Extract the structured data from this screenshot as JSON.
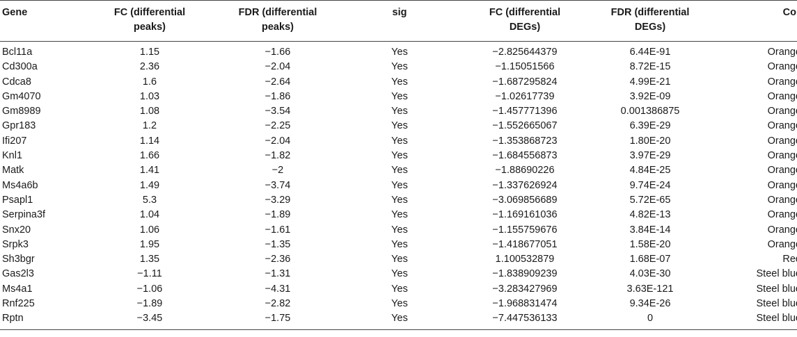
{
  "table": {
    "headers": {
      "gene": "Gene",
      "fc_peaks": [
        "FC (differential",
        "peaks)"
      ],
      "fdr_peaks": [
        "FDR (differential",
        "peaks)"
      ],
      "sig": "sig",
      "fc_degs": [
        "FC (differential",
        "DEGs)"
      ],
      "fdr_degs": [
        "FDR (differential",
        "DEGs)"
      ],
      "col": "Col"
    },
    "rows": [
      [
        "Bcl11a",
        "1.15",
        "−1.66",
        "Yes",
        "−2.825644379",
        "6.44E-91",
        "Orange"
      ],
      [
        "Cd300a",
        "2.36",
        "−2.04",
        "Yes",
        "−1.15051566",
        "8.72E-15",
        "Orange"
      ],
      [
        "Cdca8",
        "1.6",
        "−2.64",
        "Yes",
        "−1.687295824",
        "4.99E-21",
        "Orange"
      ],
      [
        "Gm4070",
        "1.03",
        "−1.86",
        "Yes",
        "−1.02617739",
        "3.92E-09",
        "Orange"
      ],
      [
        "Gm8989",
        "1.08",
        "−3.54",
        "Yes",
        "−1.457771396",
        "0.001386875",
        "Orange"
      ],
      [
        "Gpr183",
        "1.2",
        "−2.25",
        "Yes",
        "−1.552665067",
        "6.39E-29",
        "Orange"
      ],
      [
        "Ifi207",
        "1.14",
        "−2.04",
        "Yes",
        "−1.353868723",
        "1.80E-20",
        "Orange"
      ],
      [
        "Knl1",
        "1.66",
        "−1.82",
        "Yes",
        "−1.684556873",
        "3.97E-29",
        "Orange"
      ],
      [
        "Matk",
        "1.41",
        "−2",
        "Yes",
        "−1.88690226",
        "4.84E-25",
        "Orange"
      ],
      [
        "Ms4a6b",
        "1.49",
        "−3.74",
        "Yes",
        "−1.337626924",
        "9.74E-24",
        "Orange"
      ],
      [
        "Psapl1",
        "5.3",
        "−3.29",
        "Yes",
        "−3.069856689",
        "5.72E-65",
        "Orange"
      ],
      [
        "Serpina3f",
        "1.04",
        "−1.89",
        "Yes",
        "−1.169161036",
        "4.82E-13",
        "Orange"
      ],
      [
        "Snx20",
        "1.06",
        "−1.61",
        "Yes",
        "−1.155759676",
        "3.84E-14",
        "Orange"
      ],
      [
        "Srpk3",
        "1.95",
        "−1.35",
        "Yes",
        "−1.418677051",
        "1.58E-20",
        "Orange"
      ],
      [
        "Sh3bgr",
        "1.35",
        "−2.36",
        "Yes",
        "1.100532879",
        "1.68E-07",
        "Red"
      ],
      [
        "Gas2l3",
        "−1.11",
        "−1.31",
        "Yes",
        "−1.838909239",
        "4.03E-30",
        "Steel blue"
      ],
      [
        "Ms4a1",
        "−1.06",
        "−4.31",
        "Yes",
        "−3.283427969",
        "3.63E-121",
        "Steel blue"
      ],
      [
        "Rnf225",
        "−1.89",
        "−2.82",
        "Yes",
        "−1.968831474",
        "9.34E-26",
        "Steel blue"
      ],
      [
        "Rptn",
        "−3.45",
        "−1.75",
        "Yes",
        "−7.447536133",
        "0",
        "Steel blue"
      ]
    ]
  }
}
